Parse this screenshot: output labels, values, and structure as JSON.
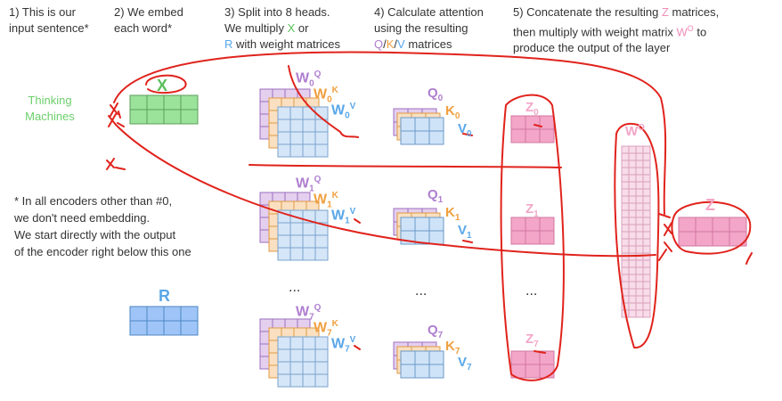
{
  "steps": [
    {
      "line1": "1) This is our",
      "line2": "input sentence*"
    },
    {
      "line1": "2) We embed",
      "line2": "each word*"
    },
    {
      "line1": "3) Split into 8 heads.",
      "line2": "We multiply ",
      "x": "X",
      "or": " or",
      "line3r": "R",
      "line3": " with weight matrices"
    },
    {
      "line1": "4) Calculate attention",
      "line2": "using the resulting",
      "q": "Q",
      "k": "K",
      "v": "V",
      "line3": " matrices"
    },
    {
      "line1a": "5) Concatenate the resulting ",
      "z": "Z",
      "line1b": " matrices,",
      "line2a": "then multiply with weight matrix ",
      "wo": "W",
      "wo_sup": "O",
      "line2b": " to",
      "line3": "produce the output of the layer"
    }
  ],
  "sentence": {
    "word1": "Thinking",
    "word2": "Machines"
  },
  "note": {
    "line1": "* In all encoders other than #0,",
    "line2": "we don't need embedding.",
    "line3": "We start directly with the output",
    "line4": "of the encoder right below this one"
  },
  "labels": {
    "x": "X",
    "r": "R",
    "w0q": "W",
    "w0q_sub": "0",
    "w0q_sup": "Q",
    "w0k": "W",
    "w0k_sub": "0",
    "w0k_sup": "K",
    "w0v": "W",
    "w0v_sub": "0",
    "w0v_sup": "V",
    "w1q": "W",
    "w1q_sub": "1",
    "w1q_sup": "Q",
    "w1k": "W",
    "w1k_sub": "1",
    "w1k_sup": "K",
    "w1v": "W",
    "w1v_sub": "1",
    "w1v_sup": "V",
    "w7q": "W",
    "w7q_sub": "7",
    "w7q_sup": "Q",
    "w7k": "W",
    "w7k_sub": "7",
    "w7k_sup": "K",
    "w7v": "W",
    "w7v_sub": "7",
    "w7v_sup": "V",
    "q0": "Q",
    "q0_sub": "0",
    "k0": "K",
    "k0_sub": "0",
    "v0": "V",
    "v0_sub": "0",
    "q1": "Q",
    "q1_sub": "1",
    "k1": "K",
    "k1_sub": "1",
    "v1": "V",
    "v1_sub": "1",
    "q7": "Q",
    "q7_sub": "7",
    "k7": "K",
    "k7_sub": "7",
    "v7": "V",
    "v7_sub": "7",
    "z0": "Z",
    "z0_sub": "0",
    "z1": "Z",
    "z1_sub": "1",
    "z7": "Z",
    "z7_sub": "7",
    "wo": "W",
    "wo_sup": "O",
    "z": "Z",
    "ellipsis": "..."
  },
  "colors": {
    "green": "#9be39b",
    "blue": "#9fc5f8",
    "purple": "#b07fd0",
    "orange": "#f4b862",
    "pink": "#f3a6c8",
    "annotation_red": "#e0231c"
  }
}
